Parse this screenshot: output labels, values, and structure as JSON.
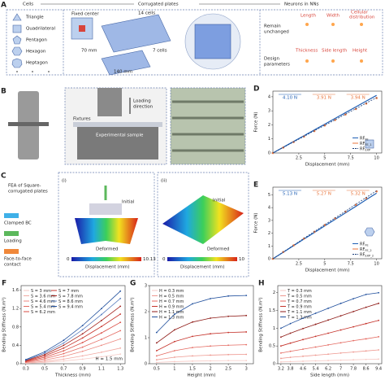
{
  "figure": {
    "a": {
      "label": "A",
      "headers": [
        "Cells",
        "Corrugated plates",
        "Neurons in NNs"
      ],
      "shapes": [
        "Triangle",
        "Quadrilateral",
        "Pentagon",
        "Hexagon",
        "Heptagon"
      ],
      "fixed_center": "Fixed center",
      "cells_14": "14 cells",
      "cells_7": "7 cells",
      "dim_70": "70 mm",
      "dim_140": "140 mm",
      "remain": [
        "Remain",
        "unchanged"
      ],
      "fixed_params": [
        "Length",
        "Width",
        "Cellular",
        "distribution"
      ],
      "design": [
        "Design",
        "parameters"
      ],
      "design_params": [
        "Thickness",
        "Side length",
        "Height"
      ]
    },
    "b": {
      "label": "B",
      "loading": [
        "Loading",
        "direction"
      ],
      "fixtures": "Fixtures",
      "sample": "Experimental sample"
    },
    "c": {
      "label": "C",
      "title": [
        "FEA of Square-",
        "corrugated plates"
      ],
      "legend": [
        "Clamped BC",
        "Loading",
        [
          "Face-to-face",
          "contact"
        ]
      ],
      "sub_i": "(i)",
      "sub_ii": "(ii)",
      "initial": "Initial",
      "deformed": "Deformed",
      "cbar_i": [
        "0",
        "10.13"
      ],
      "cbar_ii": [
        "0",
        "10"
      ],
      "cbar_label": "Displacement (mm)"
    }
  },
  "chart_data": [
    {
      "type": "line",
      "panel_label": "D",
      "xlabel": "Displacement (mm)",
      "ylabel": "Force (N)",
      "x": [
        0,
        1,
        2,
        3,
        4,
        5,
        6,
        7,
        8,
        9,
        10
      ],
      "xlim": [
        0,
        10.5
      ],
      "xticks": [
        2.5,
        5,
        7.5,
        10
      ],
      "ylim": [
        0,
        4.4
      ],
      "yticks": [
        0,
        1,
        2,
        3,
        4
      ],
      "legend": "lower right",
      "annotations": [
        "4.10 N",
        "3.91 N",
        "3.94 N"
      ],
      "annotation_colors": [
        "#1f5fb4",
        "#e8743b",
        "#e8743b"
      ],
      "series": [
        {
          "name": "RF",
          "sub": "FE",
          "color": "#1f5fb4",
          "style": "line",
          "values": [
            0,
            0.41,
            0.82,
            1.23,
            1.64,
            2.05,
            2.46,
            2.87,
            3.28,
            3.69,
            4.1
          ]
        },
        {
          "name": "RF",
          "sub": "FE_1",
          "color": "#e8743b",
          "style": "markers",
          "values": [
            0,
            0.39,
            0.78,
            1.17,
            1.56,
            1.96,
            2.35,
            2.74,
            3.13,
            3.52,
            3.91
          ]
        },
        {
          "name": "RF",
          "sub": "EXP",
          "color": "#1a3d7a",
          "style": "dashed",
          "values": [
            0,
            0.39,
            0.79,
            1.18,
            1.58,
            1.97,
            2.36,
            2.76,
            3.15,
            3.55,
            3.94
          ]
        }
      ]
    },
    {
      "type": "line",
      "panel_label": "E",
      "xlabel": "Displacement (mm)",
      "ylabel": "Force (N)",
      "x": [
        0,
        1,
        2,
        3,
        4,
        5,
        6,
        7,
        8,
        9,
        10
      ],
      "xlim": [
        0,
        10.5
      ],
      "xticks": [
        2.5,
        5,
        7.5,
        10
      ],
      "ylim": [
        0,
        5.6
      ],
      "yticks": [
        0,
        1,
        2,
        3,
        4,
        5
      ],
      "legend": "lower right",
      "annotations": [
        "5.13 N",
        "5.27 N",
        "5.32 N"
      ],
      "annotation_colors": [
        "#1f5fb4",
        "#e8743b",
        "#e8743b"
      ],
      "series": [
        {
          "name": "RF",
          "sub": "FE",
          "color": "#1f5fb4",
          "style": "line",
          "values": [
            0,
            0.51,
            1.03,
            1.54,
            2.05,
            2.57,
            3.08,
            3.59,
            4.1,
            4.62,
            5.13
          ]
        },
        {
          "name": "RF",
          "sub": "FE_2",
          "color": "#e8743b",
          "style": "markers",
          "values": [
            0,
            0.53,
            1.05,
            1.58,
            2.11,
            2.64,
            3.16,
            3.69,
            4.22,
            4.74,
            5.27
          ]
        },
        {
          "name": "RF",
          "sub": "EXP_2",
          "color": "#1a3d7a",
          "style": "dashed",
          "values": [
            0,
            0.53,
            1.06,
            1.6,
            2.13,
            2.66,
            3.19,
            3.72,
            4.26,
            4.79,
            5.32
          ]
        }
      ]
    },
    {
      "type": "line",
      "panel_label": "F",
      "xlabel": "Thickness (mm)",
      "ylabel": "Bending Stiffness (N.m²)",
      "annotation": "H = 1.5 mm",
      "x": [
        0.3,
        0.5,
        0.7,
        0.9,
        1.1,
        1.3
      ],
      "xlim": [
        0.25,
        1.35
      ],
      "xticks": [
        0.3,
        0.5,
        0.7,
        0.9,
        1.1,
        1.3
      ],
      "ylim": [
        0,
        1.7
      ],
      "yticks": [
        0,
        0.4,
        0.8,
        1.2,
        1.6
      ],
      "legend": "upper left",
      "series": [
        {
          "name": "S = 3 mm",
          "color": "#f6c9c4",
          "style": "line+markers",
          "values": [
            0.01,
            0.03,
            0.06,
            0.1,
            0.15,
            0.21
          ]
        },
        {
          "name": "S = 3.6 mm",
          "color": "#f2aaa3",
          "style": "line+markers",
          "values": [
            0.02,
            0.05,
            0.1,
            0.17,
            0.25,
            0.34
          ]
        },
        {
          "name": "S = 4.6 mm",
          "color": "#ec8a82",
          "style": "line+markers",
          "values": [
            0.03,
            0.08,
            0.16,
            0.27,
            0.4,
            0.54
          ]
        },
        {
          "name": "S = 5.4 mm",
          "color": "#e46a61",
          "style": "line+markers",
          "values": [
            0.04,
            0.11,
            0.22,
            0.36,
            0.53,
            0.72
          ]
        },
        {
          "name": "S = 6.2 mm",
          "color": "#d94b42",
          "style": "line+markers",
          "values": [
            0.05,
            0.14,
            0.28,
            0.46,
            0.67,
            0.9
          ]
        },
        {
          "name": "S = 7 mm",
          "color": "#c5332b",
          "style": "line+markers",
          "values": [
            0.06,
            0.17,
            0.34,
            0.56,
            0.81,
            1.08
          ]
        },
        {
          "name": "S = 7.8 mm",
          "color": "#a3201b",
          "style": "line+markers",
          "values": [
            0.07,
            0.2,
            0.4,
            0.65,
            0.94,
            1.25
          ]
        },
        {
          "name": "S = 8.6 mm",
          "color": "#5b7fc0",
          "style": "line+markers",
          "values": [
            0.08,
            0.23,
            0.45,
            0.74,
            1.07,
            1.42
          ]
        },
        {
          "name": "S = 9.4 mm",
          "color": "#1f4e9c",
          "style": "line+markers",
          "values": [
            0.09,
            0.26,
            0.51,
            0.83,
            1.2,
            1.58
          ]
        }
      ]
    },
    {
      "type": "line",
      "panel_label": "G",
      "xlabel": "Height (mm)",
      "ylabel": "Bending Stiffness (N.m²)",
      "x": [
        0.5,
        1,
        1.5,
        2,
        2.5,
        3
      ],
      "xlim": [
        0.3,
        3.2
      ],
      "xticks": [
        0.5,
        1,
        1.5,
        2,
        2.5,
        3
      ],
      "ylim": [
        0,
        3
      ],
      "yticks": [
        0,
        1,
        2,
        3
      ],
      "legend": "upper left",
      "series": [
        {
          "name": "H = 0.3 mm",
          "color": "#f6c9c4",
          "style": "line+markers",
          "values": [
            0.05,
            0.08,
            0.1,
            0.11,
            0.12,
            0.12
          ]
        },
        {
          "name": "H = 0.5 mm",
          "color": "#ee9890",
          "style": "line+markers",
          "values": [
            0.15,
            0.25,
            0.3,
            0.33,
            0.35,
            0.36
          ]
        },
        {
          "name": "H = 0.7 mm",
          "color": "#e46a61",
          "style": "line+markers",
          "values": [
            0.3,
            0.5,
            0.62,
            0.68,
            0.71,
            0.73
          ]
        },
        {
          "name": "H = 0.9 mm",
          "color": "#c5332b",
          "style": "line+markers",
          "values": [
            0.5,
            0.85,
            1.05,
            1.15,
            1.2,
            1.22
          ]
        },
        {
          "name": "H = 1.1 mm",
          "color": "#8e1a16",
          "style": "line+markers",
          "values": [
            0.8,
            1.3,
            1.6,
            1.75,
            1.82,
            1.85
          ]
        },
        {
          "name": "H = 1.3 mm",
          "color": "#1f4e9c",
          "style": "line+markers",
          "values": [
            1.2,
            1.9,
            2.3,
            2.5,
            2.6,
            2.62
          ]
        }
      ]
    },
    {
      "type": "line",
      "panel_label": "H",
      "xlabel": "Side length (mm)",
      "ylabel": "Bending Stiffness (N.m²)",
      "x": [
        3.2,
        3.8,
        4.6,
        5.4,
        6.2,
        7,
        7.8,
        8.6,
        9.4
      ],
      "xlim": [
        3,
        9.6
      ],
      "xticks": [
        3.2,
        3.8,
        4.6,
        5.4,
        6.2,
        7,
        7.8,
        8.6,
        9.4
      ],
      "ylim": [
        0,
        2.2
      ],
      "yticks": [
        0,
        0.5,
        1,
        1.5,
        2
      ],
      "legend": "upper left",
      "series": [
        {
          "name": "T = 0.3 mm",
          "color": "#f6c9c4",
          "style": "line+markers",
          "values": [
            0.05,
            0.06,
            0.07,
            0.08,
            0.09,
            0.1,
            0.11,
            0.12,
            0.13
          ]
        },
        {
          "name": "T = 0.5 mm",
          "color": "#ee9890",
          "style": "line+markers",
          "values": [
            0.15,
            0.18,
            0.21,
            0.24,
            0.27,
            0.3,
            0.33,
            0.36,
            0.39
          ]
        },
        {
          "name": "T = 0.7 mm",
          "color": "#e46a61",
          "style": "line+markers",
          "values": [
            0.3,
            0.35,
            0.41,
            0.47,
            0.53,
            0.59,
            0.65,
            0.7,
            0.76
          ]
        },
        {
          "name": "T = 0.9 mm",
          "color": "#c5332b",
          "style": "line+markers",
          "values": [
            0.5,
            0.58,
            0.68,
            0.77,
            0.86,
            0.95,
            1.04,
            1.13,
            1.22
          ]
        },
        {
          "name": "T = 1.1 mm",
          "color": "#8e1a16",
          "style": "line+markers",
          "values": [
            0.75,
            0.86,
            0.99,
            1.11,
            1.23,
            1.35,
            1.47,
            1.59,
            1.7
          ]
        },
        {
          "name": "T = 1.3 mm",
          "color": "#1f4e9c",
          "style": "line+markers",
          "values": [
            1.0,
            1.13,
            1.28,
            1.42,
            1.56,
            1.7,
            1.83,
            1.95,
            2.0
          ]
        }
      ]
    }
  ]
}
